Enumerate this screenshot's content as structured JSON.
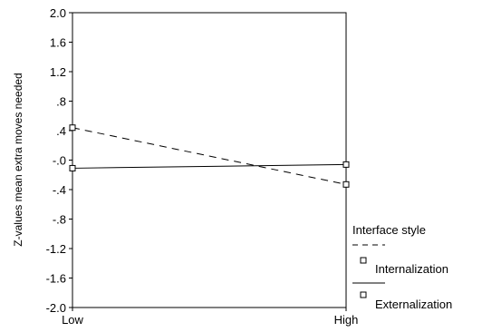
{
  "chart_data": {
    "type": "line",
    "categories": [
      "Low",
      "High"
    ],
    "ylabel": "Z-values mean extra moves needed",
    "ylim": [
      -2.0,
      2.0
    ],
    "yticks": [
      "2.0",
      "1.6",
      "1.2",
      ".8",
      ".4",
      "-.0",
      "-.4",
      "-.8",
      "-1.2",
      "-1.6",
      "-2.0"
    ],
    "ytick_values": [
      2.0,
      1.6,
      1.2,
      0.8,
      0.4,
      0.0,
      -0.4,
      -0.8,
      -1.2,
      -1.6,
      -2.0
    ],
    "grid": false,
    "legend_placement": "right",
    "legend_title": "Interface style",
    "series": [
      {
        "name": "Internalization",
        "values": [
          0.44,
          -0.33
        ],
        "line_style": "dashed",
        "marker": "square"
      },
      {
        "name": "Externalization",
        "values": [
          -0.11,
          -0.06
        ],
        "line_style": "solid",
        "marker": "square"
      }
    ],
    "colors": {
      "line": "#000000",
      "background": "#ffffff"
    }
  }
}
